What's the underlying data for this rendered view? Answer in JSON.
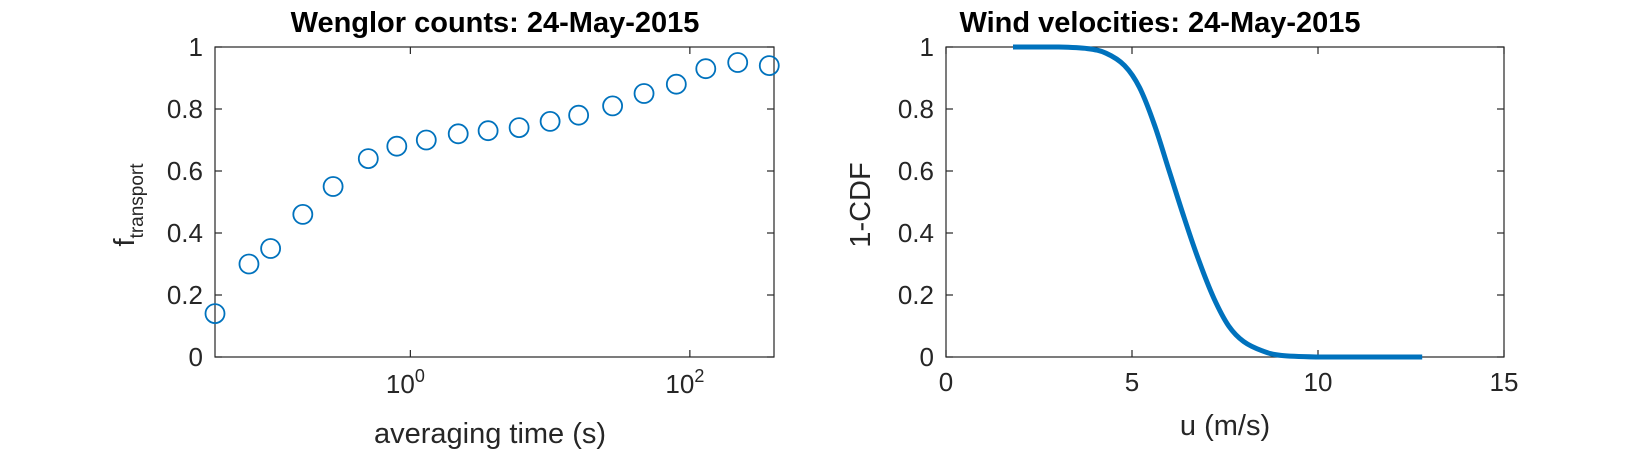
{
  "chart_data": [
    {
      "type": "scatter",
      "title": "Wenglor counts: 24-May-2015",
      "xlabel": "averaging time (s)",
      "ylabel_main": "f",
      "ylabel_sub": "transport",
      "xscale": "log",
      "xlim": [
        0.04,
        400
      ],
      "ylim": [
        0,
        1
      ],
      "xticks": [
        {
          "value": 1,
          "base": "10",
          "exp": "0"
        },
        {
          "value": 100,
          "base": "10",
          "exp": "2"
        }
      ],
      "yticks": [
        0,
        0.2,
        0.4,
        0.6,
        0.8,
        1
      ],
      "ytick_labels": [
        "0",
        "0.2",
        "0.4",
        "0.6",
        "0.8",
        "1"
      ],
      "marker": "circle-open",
      "color": "#0072BD",
      "x": [
        0.04,
        0.07,
        0.1,
        0.17,
        0.28,
        0.5,
        0.8,
        1.3,
        2.2,
        3.6,
        6.0,
        10,
        16,
        28,
        47,
        80,
        130,
        220,
        370
      ],
      "y": [
        0.14,
        0.3,
        0.35,
        0.46,
        0.55,
        0.64,
        0.68,
        0.7,
        0.72,
        0.73,
        0.74,
        0.76,
        0.78,
        0.81,
        0.85,
        0.88,
        0.93,
        0.95,
        0.94
      ]
    },
    {
      "type": "line",
      "title": "Wind velocities: 24-May-2015",
      "xlabel": "u (m/s)",
      "ylabel": "1-CDF",
      "xlim": [
        0,
        15
      ],
      "ylim": [
        0,
        1
      ],
      "xticks": [
        0,
        5,
        10,
        15
      ],
      "xtick_labels": [
        "0",
        "5",
        "10",
        "15"
      ],
      "yticks": [
        0,
        0.2,
        0.4,
        0.6,
        0.8,
        1
      ],
      "ytick_labels": [
        "0",
        "0.2",
        "0.4",
        "0.6",
        "0.8",
        "1"
      ],
      "color": "#0072BD",
      "x": [
        1.8,
        3.0,
        3.8,
        4.3,
        4.8,
        5.2,
        5.6,
        6.0,
        6.4,
        6.8,
        7.2,
        7.6,
        8.0,
        8.5,
        9.0,
        10.0,
        11.5,
        12.8
      ],
      "y": [
        1.0,
        1.0,
        0.995,
        0.98,
        0.94,
        0.87,
        0.75,
        0.6,
        0.45,
        0.31,
        0.19,
        0.1,
        0.05,
        0.02,
        0.005,
        0.0,
        0.0,
        0.0
      ]
    }
  ]
}
